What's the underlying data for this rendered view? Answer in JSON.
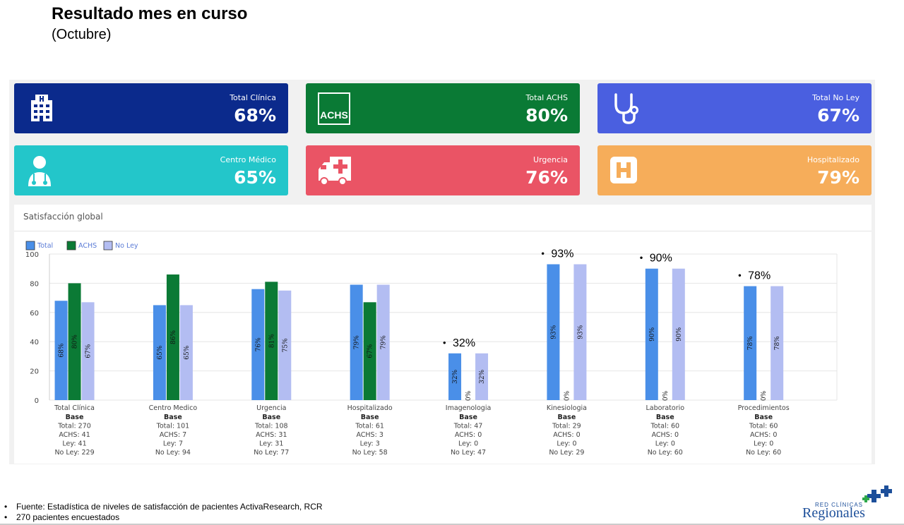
{
  "header": {
    "title": "Resultado mes en curso",
    "subtitle": "(Octubre)"
  },
  "cards": [
    {
      "label": "Total Clínica",
      "value": "68%",
      "color": "#0b2a8c",
      "icon": "hospital-building-icon"
    },
    {
      "label": "Total ACHS",
      "value": "80%",
      "color": "#0a7a35",
      "icon": "achs-logo-icon",
      "icon_text": "ACHS"
    },
    {
      "label": "Total No Ley",
      "value": "67%",
      "color": "#4a5fe0",
      "icon": "stethoscope-icon"
    },
    {
      "label": "Centro Médico",
      "value": "65%",
      "color": "#23c6ca",
      "icon": "doctor-icon"
    },
    {
      "label": "Urgencia",
      "value": "76%",
      "color": "#ea5465",
      "icon": "ambulance-icon"
    },
    {
      "label": "Hospitalizado",
      "value": "79%",
      "color": "#f6ad5a",
      "icon": "hospital-h-icon"
    }
  ],
  "chart_section": {
    "title": "Satisfacción global"
  },
  "chart_data": {
    "type": "bar",
    "ylim": [
      0,
      100
    ],
    "yticks": [
      0,
      20,
      40,
      60,
      80,
      100
    ],
    "grid": true,
    "legend_position": "top-left",
    "categories": [
      "Total Clínica",
      "Centro Medico",
      "Urgencia",
      "Hospitalizado",
      "Imagenologia",
      "Kinesiologia",
      "Laboratorio",
      "Procedimientos"
    ],
    "series": [
      {
        "name": "Total",
        "color": "#4a8fe8",
        "values": [
          68,
          65,
          76,
          79,
          32,
          93,
          90,
          78
        ],
        "labels": [
          "68%",
          "65%",
          "76%",
          "79%",
          "32%",
          "93%",
          "90%",
          "78%"
        ]
      },
      {
        "name": "ACHS",
        "color": "#0b7a35",
        "values": [
          80,
          86,
          81,
          67,
          0,
          0,
          0,
          0
        ],
        "labels": [
          "80%",
          "86%",
          "81%",
          "67%",
          "0%",
          "0%",
          "0%",
          "0%"
        ]
      },
      {
        "name": "No Ley",
        "color": "#b3bdf2",
        "values": [
          67,
          65,
          75,
          79,
          32,
          93,
          90,
          78
        ],
        "labels": [
          "67%",
          "65%",
          "75%",
          "79%",
          "32%",
          "93%",
          "90%",
          "78%"
        ]
      }
    ],
    "base": [
      {
        "lines": [
          "Base",
          "Total: 270",
          "ACHS: 41",
          "Ley: 41",
          "No Ley: 229"
        ]
      },
      {
        "lines": [
          "Base",
          "Total: 101",
          "ACHS: 7",
          "Ley: 7",
          "No Ley: 94"
        ]
      },
      {
        "lines": [
          "Base",
          "Total: 108",
          "ACHS: 31",
          "Ley: 31",
          "No Ley: 77"
        ]
      },
      {
        "lines": [
          "Base",
          "Total: 61",
          "ACHS: 3",
          "Ley: 3",
          "No Ley: 58"
        ]
      },
      {
        "lines": [
          "Base",
          "Total: 47",
          "ACHS: 0",
          "Ley: 0",
          "No Ley: 47"
        ]
      },
      {
        "lines": [
          "Base",
          "Total: 29",
          "ACHS: 0",
          "Ley: 0",
          "No Ley: 29"
        ]
      },
      {
        "lines": [
          "Base",
          "Total: 60",
          "ACHS: 0",
          "Ley: 0",
          "No Ley: 60"
        ]
      },
      {
        "lines": [
          "Base",
          "Total: 60",
          "ACHS: 0",
          "Ley: 0",
          "No Ley: 60"
        ]
      }
    ],
    "annotations": [
      {
        "category": "Imagenologia",
        "text": "32%"
      },
      {
        "category": "Kinesiologia",
        "text": "93%"
      },
      {
        "category": "Laboratorio",
        "text": "90%"
      },
      {
        "category": "Procedimientos",
        "text": "78%"
      }
    ]
  },
  "footer": {
    "notes": [
      "Fuente: Estadística de niveles de satisfacción de pacientes ActivaResearch, RCR",
      "270 pacientes encuestados"
    ]
  },
  "logo": {
    "small_text": "RED CLÍNICAS",
    "big_text": "Regionales",
    "color": "#1d4f9a"
  }
}
